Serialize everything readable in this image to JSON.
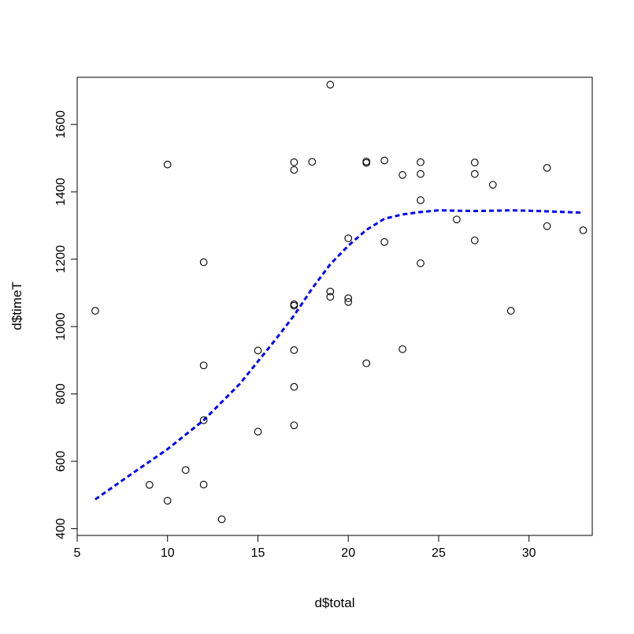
{
  "chart_data": {
    "type": "scatter",
    "title": "",
    "xlabel": "d$total",
    "ylabel": "d$timeT",
    "xlim": [
      5,
      33.5
    ],
    "ylim": [
      380,
      1740
    ],
    "xticks": [
      5,
      10,
      15,
      20,
      25,
      30
    ],
    "yticks": [
      400,
      600,
      800,
      1000,
      1200,
      1400,
      1600
    ],
    "grid": false,
    "legend": "none",
    "colors": {
      "points": "#000000",
      "fit": "#0000ff",
      "frame": "#000000"
    },
    "points": [
      [
        6,
        1047
      ],
      [
        9,
        530
      ],
      [
        10,
        1481
      ],
      [
        10,
        483
      ],
      [
        11,
        574
      ],
      [
        12,
        1191
      ],
      [
        12,
        885
      ],
      [
        12,
        722
      ],
      [
        12,
        531
      ],
      [
        13,
        428
      ],
      [
        15,
        929
      ],
      [
        15,
        688
      ],
      [
        17,
        1488
      ],
      [
        17,
        1465
      ],
      [
        17,
        1066
      ],
      [
        17,
        1062
      ],
      [
        17,
        930
      ],
      [
        17,
        821
      ],
      [
        17,
        707
      ],
      [
        18,
        1489
      ],
      [
        19,
        1718
      ],
      [
        19,
        1104
      ],
      [
        19,
        1088
      ],
      [
        20,
        1262
      ],
      [
        20,
        1084
      ],
      [
        20,
        1073
      ],
      [
        21,
        1490
      ],
      [
        21,
        1486
      ],
      [
        21,
        891
      ],
      [
        22,
        1493
      ],
      [
        22,
        1251
      ],
      [
        23,
        1450
      ],
      [
        23,
        933
      ],
      [
        24,
        1488
      ],
      [
        24,
        1453
      ],
      [
        24,
        1375
      ],
      [
        24,
        1188
      ],
      [
        26,
        1318
      ],
      [
        27,
        1487
      ],
      [
        27,
        1453
      ],
      [
        27,
        1256
      ],
      [
        28,
        1421
      ],
      [
        29,
        1047
      ],
      [
        31,
        1471
      ],
      [
        31,
        1298
      ],
      [
        33,
        1286
      ]
    ],
    "fit_line": [
      [
        6,
        487
      ],
      [
        8,
        562
      ],
      [
        10,
        636
      ],
      [
        12,
        722
      ],
      [
        14,
        830
      ],
      [
        16,
        963
      ],
      [
        17,
        1033
      ],
      [
        18,
        1113
      ],
      [
        19,
        1185
      ],
      [
        20,
        1240
      ],
      [
        21,
        1287
      ],
      [
        22,
        1320
      ],
      [
        23,
        1333
      ],
      [
        24,
        1340
      ],
      [
        25,
        1345
      ],
      [
        26,
        1344
      ],
      [
        27,
        1343
      ],
      [
        28,
        1344
      ],
      [
        29,
        1345
      ],
      [
        30,
        1344
      ],
      [
        31,
        1342
      ],
      [
        32,
        1340
      ],
      [
        33,
        1338
      ]
    ]
  }
}
